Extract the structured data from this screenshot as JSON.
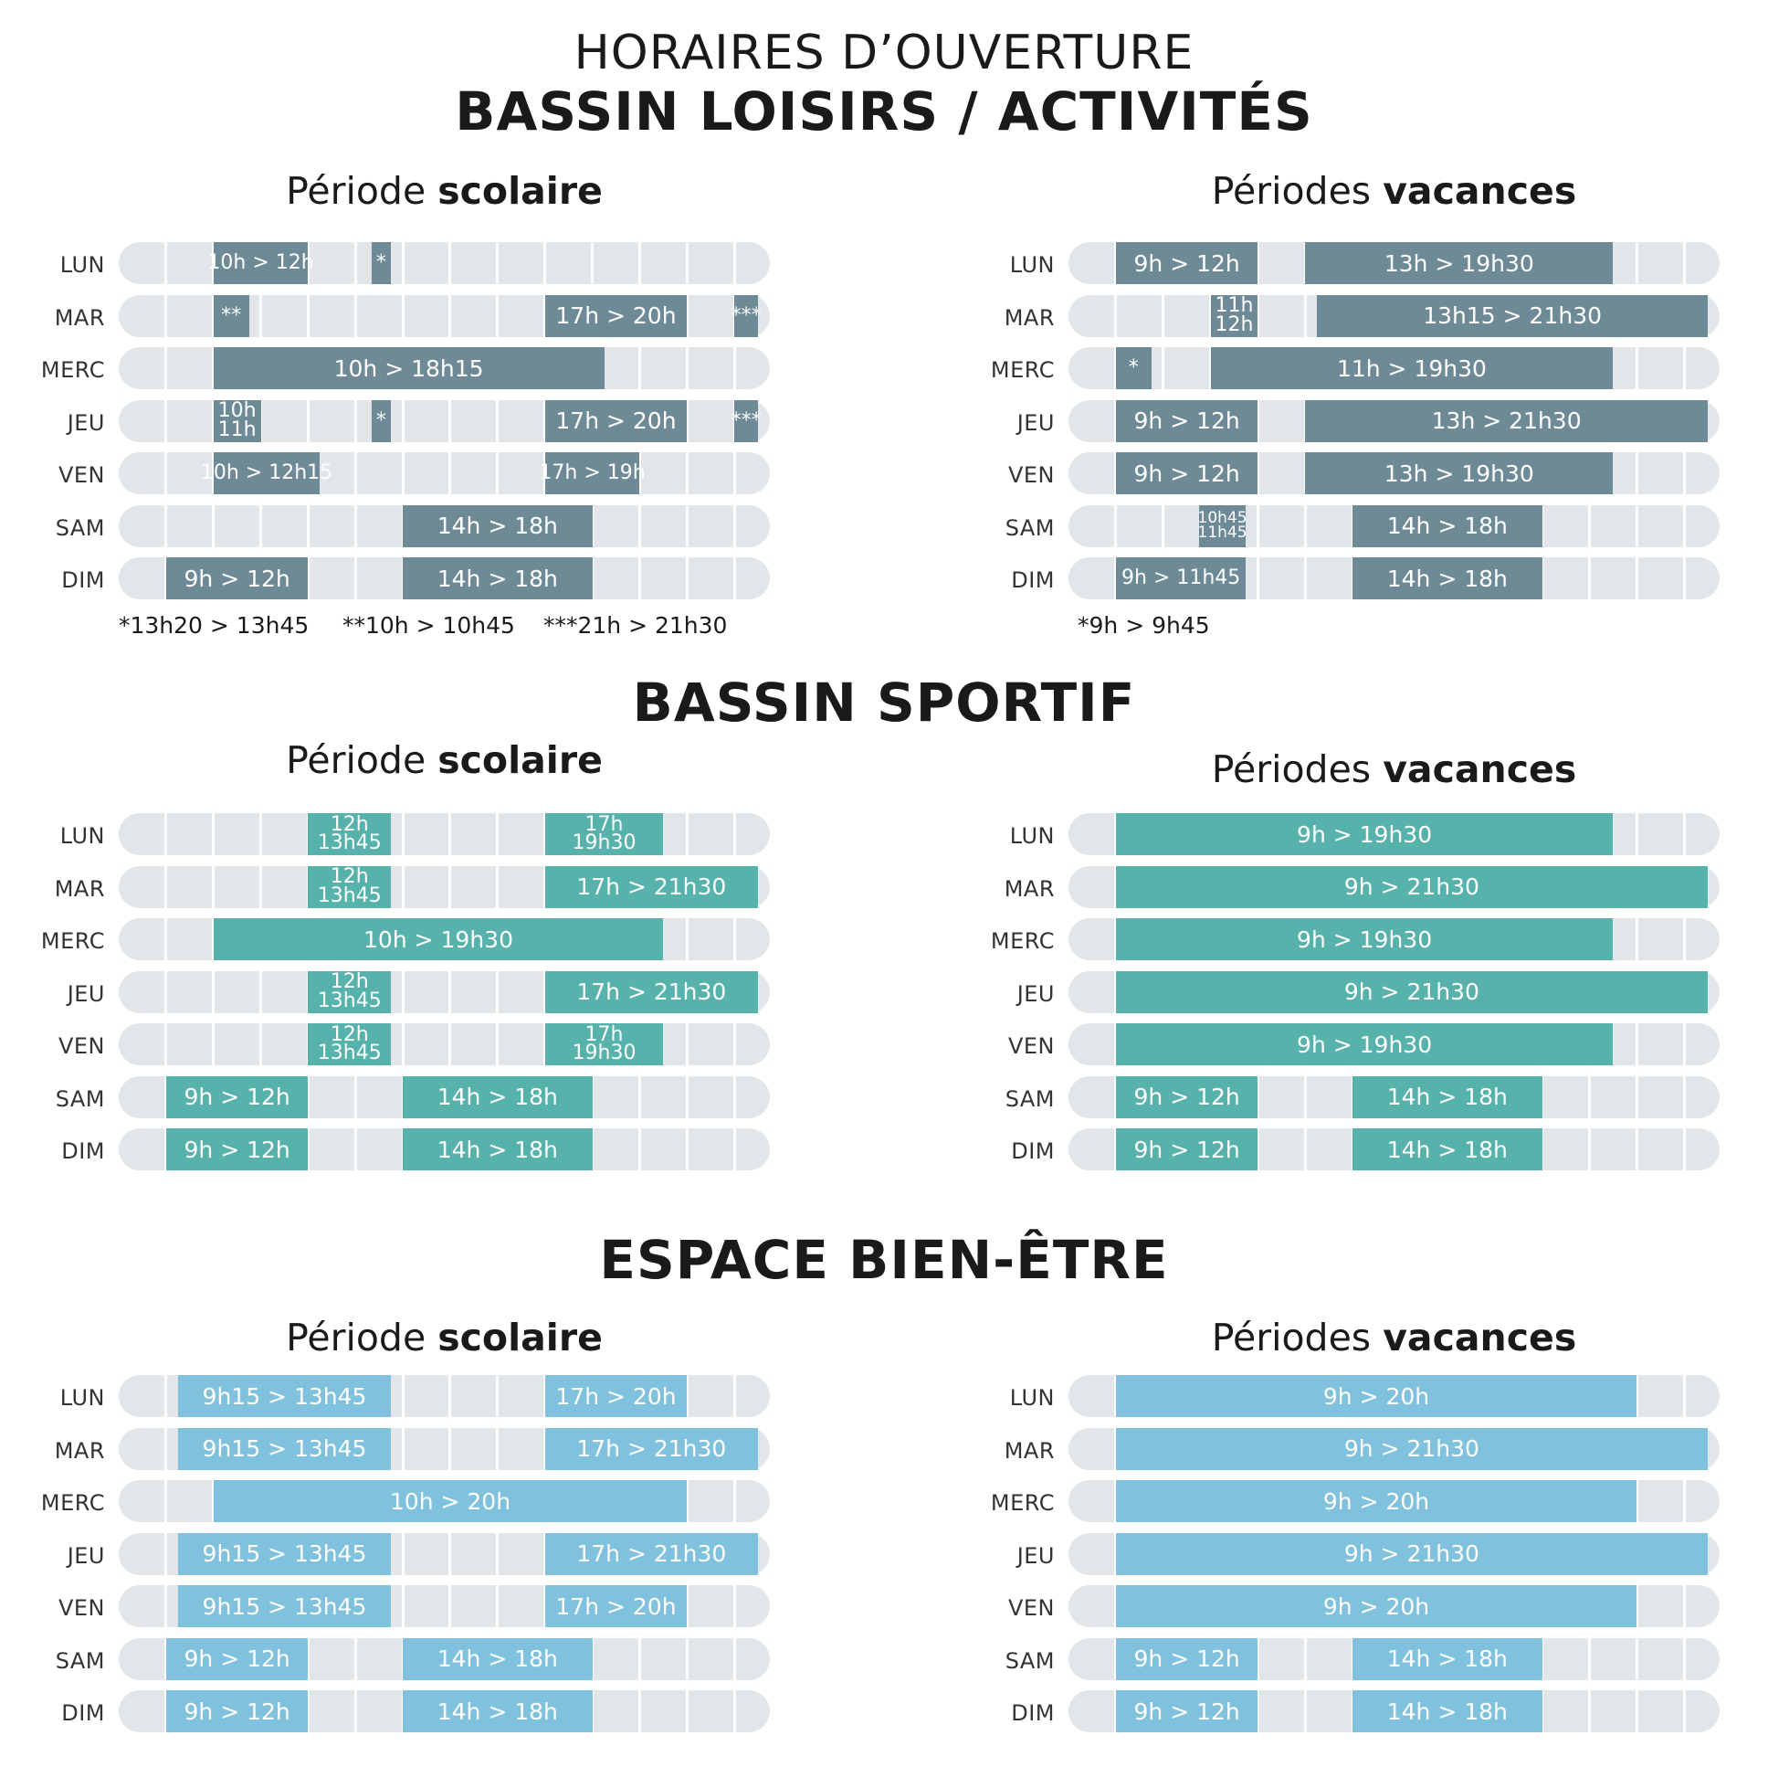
{
  "page": {
    "title_line1": "HORAIRES D’OUVERTURE",
    "title_line2": "BASSIN LOISIRS / ACTIVITÉS"
  },
  "days": [
    "LUN",
    "MAR",
    "MERC",
    "JEU",
    "VEN",
    "SAM",
    "DIM"
  ],
  "colors": {
    "loisirs": "#6e8a97",
    "sportif": "#56b2ab",
    "bienetre": "#80c1de",
    "track": "#e3e6e9"
  },
  "sections": [
    {
      "title": "",
      "color_key": "loisirs",
      "scolaire": {
        "title_regular": "Période ",
        "title_bold": "scolaire",
        "rows": [
          [
            {
              "s": 10,
              "e": 12,
              "label": [
                "10h > 12h"
              ],
              "size": "small"
            },
            {
              "s": 13.333,
              "e": 13.75,
              "label": [
                "*"
              ],
              "size": "small"
            }
          ],
          [
            {
              "s": 10,
              "e": 10.75,
              "label": [
                "**"
              ],
              "size": "small"
            },
            {
              "s": 17,
              "e": 20,
              "label": [
                "17h > 20h"
              ]
            },
            {
              "s": 21,
              "e": 21.5,
              "label": [
                "***"
              ],
              "size": "small"
            }
          ],
          [
            {
              "s": 10,
              "e": 18.25,
              "label": [
                "10h > 18h15"
              ]
            }
          ],
          [
            {
              "s": 10,
              "e": 11,
              "label": [
                "10h",
                "11h"
              ]
            },
            {
              "s": 13.333,
              "e": 13.75,
              "label": [
                "*"
              ],
              "size": "small"
            },
            {
              "s": 17,
              "e": 20,
              "label": [
                "17h > 20h"
              ]
            },
            {
              "s": 21,
              "e": 21.5,
              "label": [
                "***"
              ],
              "size": "small"
            }
          ],
          [
            {
              "s": 10,
              "e": 12.25,
              "label": [
                "10h > 12h15"
              ],
              "size": "small"
            },
            {
              "s": 17,
              "e": 19,
              "label": [
                "17h > 19h"
              ],
              "size": "small"
            }
          ],
          [
            {
              "s": 14,
              "e": 18,
              "label": [
                "14h > 18h"
              ]
            }
          ],
          [
            {
              "s": 9,
              "e": 12,
              "label": [
                "9h > 12h"
              ]
            },
            {
              "s": 14,
              "e": 18,
              "label": [
                "14h > 18h"
              ]
            }
          ]
        ],
        "footnotes": [
          "*13h20 > 13h45",
          "**10h > 10h45",
          "***21h > 21h30"
        ]
      },
      "vacances": {
        "title_regular": "Périodes ",
        "title_bold": "vacances",
        "rows": [
          [
            {
              "s": 9,
              "e": 12,
              "label": [
                "9h > 12h"
              ]
            },
            {
              "s": 13,
              "e": 19.5,
              "label": [
                "13h > 19h30"
              ]
            }
          ],
          [
            {
              "s": 11,
              "e": 12,
              "label": [
                "11h",
                "12h"
              ]
            },
            {
              "s": 13.25,
              "e": 21.5,
              "label": [
                "13h15 > 21h30"
              ]
            }
          ],
          [
            {
              "s": 9,
              "e": 9.75,
              "label": [
                "*"
              ],
              "size": "small"
            },
            {
              "s": 11,
              "e": 19.5,
              "label": [
                "11h > 19h30"
              ]
            }
          ],
          [
            {
              "s": 9,
              "e": 12,
              "label": [
                "9h > 12h"
              ]
            },
            {
              "s": 13,
              "e": 21.5,
              "label": [
                "13h > 21h30"
              ]
            }
          ],
          [
            {
              "s": 9,
              "e": 12,
              "label": [
                "9h > 12h"
              ]
            },
            {
              "s": 13,
              "e": 19.5,
              "label": [
                "13h > 19h30"
              ]
            }
          ],
          [
            {
              "s": 10.75,
              "e": 11.75,
              "label": [
                "10h45",
                "11h45"
              ],
              "size": "tiny"
            },
            {
              "s": 14,
              "e": 18,
              "label": [
                "14h > 18h"
              ]
            }
          ],
          [
            {
              "s": 9,
              "e": 11.75,
              "label": [
                "9h > 11h45"
              ],
              "size": "small"
            },
            {
              "s": 14,
              "e": 18,
              "label": [
                "14h > 18h"
              ]
            }
          ]
        ],
        "footnotes": [
          "*9h > 9h45"
        ]
      }
    },
    {
      "title": "BASSIN SPORTIF",
      "color_key": "sportif",
      "scolaire": {
        "title_regular": "Période ",
        "title_bold": "scolaire",
        "rows": [
          [
            {
              "s": 12,
              "e": 13.75,
              "label": [
                "12h",
                "13h45"
              ]
            },
            {
              "s": 17,
              "e": 19.5,
              "label": [
                "17h",
                "19h30"
              ]
            }
          ],
          [
            {
              "s": 12,
              "e": 13.75,
              "label": [
                "12h",
                "13h45"
              ]
            },
            {
              "s": 17,
              "e": 21.5,
              "label": [
                "17h > 21h30"
              ]
            }
          ],
          [
            {
              "s": 10,
              "e": 19.5,
              "label": [
                "10h > 19h30"
              ]
            }
          ],
          [
            {
              "s": 12,
              "e": 13.75,
              "label": [
                "12h",
                "13h45"
              ]
            },
            {
              "s": 17,
              "e": 21.5,
              "label": [
                "17h > 21h30"
              ]
            }
          ],
          [
            {
              "s": 12,
              "e": 13.75,
              "label": [
                "12h",
                "13h45"
              ]
            },
            {
              "s": 17,
              "e": 19.5,
              "label": [
                "17h",
                "19h30"
              ]
            }
          ],
          [
            {
              "s": 9,
              "e": 12,
              "label": [
                "9h > 12h"
              ]
            },
            {
              "s": 14,
              "e": 18,
              "label": [
                "14h > 18h"
              ]
            }
          ],
          [
            {
              "s": 9,
              "e": 12,
              "label": [
                "9h > 12h"
              ]
            },
            {
              "s": 14,
              "e": 18,
              "label": [
                "14h > 18h"
              ]
            }
          ]
        ],
        "footnotes": []
      },
      "vacances": {
        "title_regular": "Périodes ",
        "title_bold": "vacances",
        "rows": [
          [
            {
              "s": 9,
              "e": 19.5,
              "label": [
                "9h > 19h30"
              ]
            }
          ],
          [
            {
              "s": 9,
              "e": 21.5,
              "label": [
                "9h > 21h30"
              ]
            }
          ],
          [
            {
              "s": 9,
              "e": 19.5,
              "label": [
                "9h > 19h30"
              ]
            }
          ],
          [
            {
              "s": 9,
              "e": 21.5,
              "label": [
                "9h > 21h30"
              ]
            }
          ],
          [
            {
              "s": 9,
              "e": 19.5,
              "label": [
                "9h > 19h30"
              ]
            }
          ],
          [
            {
              "s": 9,
              "e": 12,
              "label": [
                "9h > 12h"
              ]
            },
            {
              "s": 14,
              "e": 18,
              "label": [
                "14h > 18h"
              ]
            }
          ],
          [
            {
              "s": 9,
              "e": 12,
              "label": [
                "9h > 12h"
              ]
            },
            {
              "s": 14,
              "e": 18,
              "label": [
                "14h > 18h"
              ]
            }
          ]
        ],
        "footnotes": []
      }
    },
    {
      "title": "ESPACE BIEN-ÊTRE",
      "color_key": "bienetre",
      "scolaire": {
        "title_regular": "Période ",
        "title_bold": "scolaire",
        "rows": [
          [
            {
              "s": 9.25,
              "e": 13.75,
              "label": [
                "9h15 > 13h45"
              ]
            },
            {
              "s": 17,
              "e": 20,
              "label": [
                "17h > 20h"
              ]
            }
          ],
          [
            {
              "s": 9.25,
              "e": 13.75,
              "label": [
                "9h15 > 13h45"
              ]
            },
            {
              "s": 17,
              "e": 21.5,
              "label": [
                "17h > 21h30"
              ]
            }
          ],
          [
            {
              "s": 10,
              "e": 20,
              "label": [
                "10h > 20h"
              ]
            }
          ],
          [
            {
              "s": 9.25,
              "e": 13.75,
              "label": [
                "9h15 > 13h45"
              ]
            },
            {
              "s": 17,
              "e": 21.5,
              "label": [
                "17h > 21h30"
              ]
            }
          ],
          [
            {
              "s": 9.25,
              "e": 13.75,
              "label": [
                "9h15 > 13h45"
              ]
            },
            {
              "s": 17,
              "e": 20,
              "label": [
                "17h > 20h"
              ]
            }
          ],
          [
            {
              "s": 9,
              "e": 12,
              "label": [
                "9h > 12h"
              ]
            },
            {
              "s": 14,
              "e": 18,
              "label": [
                "14h > 18h"
              ]
            }
          ],
          [
            {
              "s": 9,
              "e": 12,
              "label": [
                "9h > 12h"
              ]
            },
            {
              "s": 14,
              "e": 18,
              "label": [
                "14h > 18h"
              ]
            }
          ]
        ],
        "footnotes": []
      },
      "vacances": {
        "title_regular": "Périodes ",
        "title_bold": "vacances",
        "rows": [
          [
            {
              "s": 9,
              "e": 20,
              "label": [
                "9h > 20h"
              ]
            }
          ],
          [
            {
              "s": 9,
              "e": 21.5,
              "label": [
                "9h > 21h30"
              ]
            }
          ],
          [
            {
              "s": 9,
              "e": 20,
              "label": [
                "9h > 20h"
              ]
            }
          ],
          [
            {
              "s": 9,
              "e": 21.5,
              "label": [
                "9h > 21h30"
              ]
            }
          ],
          [
            {
              "s": 9,
              "e": 20,
              "label": [
                "9h > 20h"
              ]
            }
          ],
          [
            {
              "s": 9,
              "e": 12,
              "label": [
                "9h > 12h"
              ]
            },
            {
              "s": 14,
              "e": 18,
              "label": [
                "14h > 18h"
              ]
            }
          ],
          [
            {
              "s": 9,
              "e": 12,
              "label": [
                "9h > 12h"
              ]
            },
            {
              "s": 14,
              "e": 18,
              "label": [
                "14h > 18h"
              ]
            }
          ]
        ],
        "footnotes": []
      }
    }
  ]
}
